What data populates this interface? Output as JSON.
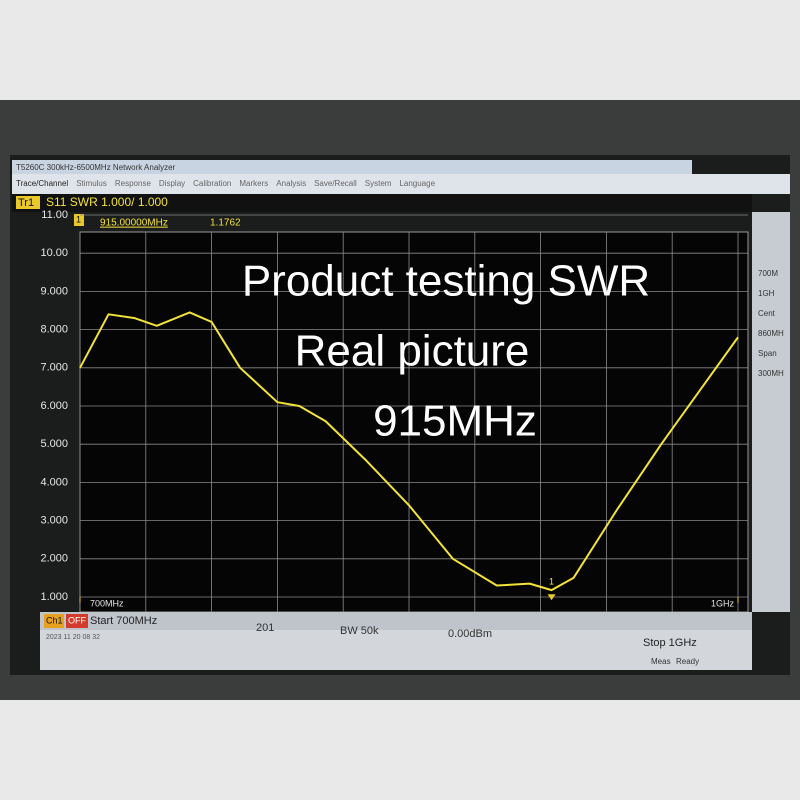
{
  "window_title": "T5260C 300kHz-6500MHz Network Analyzer",
  "menu": [
    "Trace/Channel",
    "Stimulus",
    "Response",
    "Display",
    "Calibration",
    "Markers",
    "Analysis",
    "Save/Recall",
    "System",
    "Language"
  ],
  "trace": {
    "id": "Tr1",
    "label": "S11 SWR 1.000/ 1.000"
  },
  "marker": {
    "number": "1",
    "frequency": "915.00000MHz",
    "value": 1.1762
  },
  "overlay": [
    "Product testing SWR",
    "Real picture",
    "915MHz"
  ],
  "status": {
    "channel": "Ch1",
    "off": "OFF",
    "start": "Start 700MHz",
    "points": "201",
    "bandwidth": "BW 50k",
    "power": "0.00dBm",
    "stop": "Stop 1GHz",
    "timestamp": "2023 11 20 08 32",
    "meas": "Meas",
    "ready": "Ready"
  },
  "side_panel": [
    "700M",
    "1GH",
    "Cent",
    "860MH",
    "Span",
    "300MH"
  ],
  "chart_data": {
    "type": "line",
    "x": [
      700,
      713,
      725,
      735,
      750,
      760,
      773,
      790,
      800,
      812,
      830,
      850,
      870,
      890,
      905,
      915,
      925,
      945,
      965,
      985,
      1000
    ],
    "series": [
      {
        "name": "S11 SWR",
        "color": "#f2e23a",
        "values": [
          7.0,
          8.4,
          8.3,
          8.1,
          8.45,
          8.2,
          7.0,
          6.1,
          6.0,
          5.6,
          4.6,
          3.4,
          2.0,
          1.3,
          1.35,
          1.18,
          1.5,
          3.3,
          5.0,
          6.6,
          7.8
        ]
      }
    ],
    "xlim": [
      700,
      1000
    ],
    "xticks": [
      {
        "value": 700,
        "label": "700MHz"
      },
      {
        "value": 1000,
        "label": "1GHz"
      }
    ],
    "ylim": [
      1,
      11
    ],
    "yticks": [
      {
        "value": 11,
        "label": "11.00"
      },
      {
        "value": 10,
        "label": "10.00"
      },
      {
        "value": 9,
        "label": "9.000"
      },
      {
        "value": 8,
        "label": "8.000"
      },
      {
        "value": 7,
        "label": "7.000"
      },
      {
        "value": 6,
        "label": "6.000"
      },
      {
        "value": 5,
        "label": "5.000"
      },
      {
        "value": 4,
        "label": "4.000"
      },
      {
        "value": 3,
        "label": "3.000"
      },
      {
        "value": 2,
        "label": "2.000"
      },
      {
        "value": 1,
        "label": "1.000"
      }
    ],
    "grid": true
  }
}
